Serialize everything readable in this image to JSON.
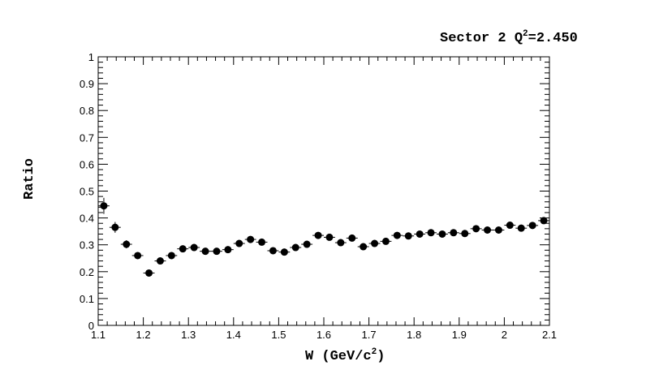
{
  "chart_data": {
    "type": "scatter",
    "title": {
      "main": "Sector 2 Q",
      "sup": "2",
      "value": "=2.450"
    },
    "xlabel": {
      "main": "W  (GeV/c",
      "sup": "2",
      "end": ")"
    },
    "ylabel": "Ratio",
    "xlim": [
      1.1,
      2.1
    ],
    "ylim": [
      0,
      1
    ],
    "x_ticks": [
      1.1,
      1.2,
      1.3,
      1.4,
      1.5,
      1.6,
      1.7,
      1.8,
      1.9,
      2.0,
      2.1
    ],
    "x_tick_labels": [
      "1.1",
      "1.2",
      "1.3",
      "1.4",
      "1.5",
      "1.6",
      "1.7",
      "1.8",
      "1.9",
      "2",
      "2.1"
    ],
    "y_ticks": [
      0,
      0.1,
      0.2,
      0.3,
      0.4,
      0.5,
      0.6,
      0.7,
      0.8,
      0.9,
      1.0
    ],
    "y_tick_labels": [
      "0",
      "0.1",
      "0.2",
      "0.3",
      "0.4",
      "0.5",
      "0.6",
      "0.7",
      "0.8",
      "0.9",
      "1"
    ],
    "grid": false,
    "marker_color": "#000000",
    "series": [
      {
        "x": [
          1.1125,
          1.1375,
          1.1625,
          1.1875,
          1.2125,
          1.2375,
          1.2625,
          1.2875,
          1.3125,
          1.3375,
          1.3625,
          1.3875,
          1.4125,
          1.4375,
          1.4625,
          1.4875,
          1.5125,
          1.5375,
          1.5625,
          1.5875,
          1.6125,
          1.6375,
          1.6625,
          1.6875,
          1.7125,
          1.7375,
          1.7625,
          1.7875,
          1.8125,
          1.8375,
          1.8625,
          1.8875,
          1.9125,
          1.9375,
          1.9625,
          1.9875,
          2.0125,
          2.0375,
          2.0625,
          2.0875
        ],
        "y": [
          0.445,
          0.365,
          0.302,
          0.26,
          0.195,
          0.24,
          0.26,
          0.285,
          0.29,
          0.276,
          0.276,
          0.282,
          0.305,
          0.32,
          0.31,
          0.278,
          0.273,
          0.29,
          0.302,
          0.335,
          0.328,
          0.308,
          0.325,
          0.293,
          0.305,
          0.313,
          0.335,
          0.333,
          0.34,
          0.345,
          0.34,
          0.345,
          0.342,
          0.36,
          0.355,
          0.355,
          0.373,
          0.362,
          0.372,
          0.39
        ],
        "yerr": [
          0.03,
          0.02,
          0.015,
          0.012,
          0.01,
          0.01,
          0.01,
          0.01,
          0.01,
          0.01,
          0.01,
          0.01,
          0.01,
          0.01,
          0.01,
          0.01,
          0.01,
          0.01,
          0.01,
          0.01,
          0.01,
          0.01,
          0.01,
          0.01,
          0.01,
          0.01,
          0.01,
          0.01,
          0.01,
          0.01,
          0.01,
          0.01,
          0.01,
          0.01,
          0.01,
          0.01,
          0.01,
          0.01,
          0.01,
          0.01
        ],
        "xerr": 0.0125
      }
    ]
  }
}
